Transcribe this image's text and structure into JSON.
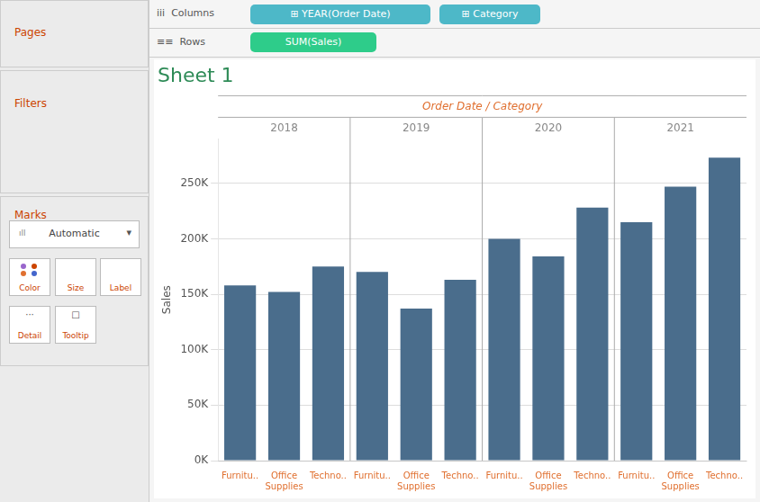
{
  "chart_data": {
    "type": "bar",
    "title": "Sheet 1",
    "x_label": "Order Date / Category",
    "y_label": "Sales",
    "categories": [
      "Furnitu..",
      "Office\nSupplies",
      "Techno..",
      "Furnitu..",
      "Office\nSupplies",
      "Techno..",
      "Furnitu..",
      "Office\nSupplies",
      "Techno..",
      "Furnitu..",
      "Office\nSupplies",
      "Techno.."
    ],
    "group_labels": [
      "2018",
      "2019",
      "2020",
      "2021"
    ],
    "values": [
      158000,
      152000,
      175000,
      170000,
      137000,
      163000,
      200000,
      184000,
      228000,
      215000,
      247000,
      273000
    ],
    "color": "#4a6d8c",
    "ylim": [
      0,
      290000
    ],
    "yticks": [
      {
        "value": 0,
        "label": "0K"
      },
      {
        "value": 50000,
        "label": "50K"
      },
      {
        "value": 100000,
        "label": "100K"
      },
      {
        "value": 150000,
        "label": "150K"
      },
      {
        "value": 200000,
        "label": "200K"
      },
      {
        "value": 250000,
        "label": "250K"
      }
    ],
    "grid": true,
    "annotations": [
      "Pages",
      "Filters",
      "Marks",
      "ıll",
      "Automatic",
      "▾",
      "Color",
      "Size",
      "Label",
      "···",
      "Detail",
      "□",
      "Tooltip",
      "iii  Columns",
      "⊞ YEAR(Order Date)",
      "⊞ Category",
      "≡≡  Rows",
      "SUM(Sales)"
    ]
  }
}
